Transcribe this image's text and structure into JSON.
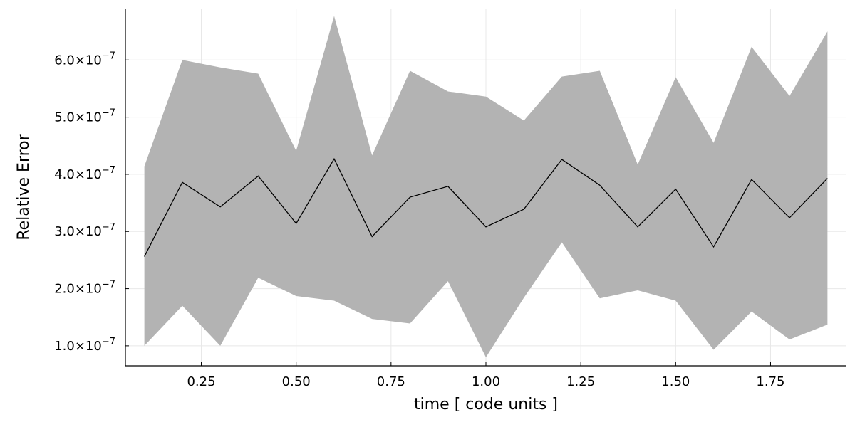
{
  "chart_data": {
    "type": "line",
    "title": "",
    "xlabel": "time [ code units ]",
    "ylabel": "Relative Error",
    "xlim": [
      0.05,
      1.95
    ],
    "ylim": [
      6.5e-08,
      6.9e-07
    ],
    "grid": true,
    "legend": "none",
    "x_ticks": [
      0.25,
      0.5,
      0.75,
      1.0,
      1.25,
      1.5,
      1.75
    ],
    "x_tick_labels": [
      "0.25",
      "0.50",
      "0.75",
      "1.00",
      "1.25",
      "1.50",
      "1.75"
    ],
    "y_ticks": [
      1e-07,
      2e-07,
      3e-07,
      4e-07,
      5e-07,
      6e-07
    ],
    "y_tick_mantissas": [
      "1.0",
      "2.0",
      "3.0",
      "4.0",
      "5.0",
      "6.0"
    ],
    "y_tick_base": "×10",
    "y_tick_exponent": "−7",
    "x": [
      0.1,
      0.2,
      0.3,
      0.4,
      0.5,
      0.6,
      0.7,
      0.8,
      0.9,
      1.0,
      1.1,
      1.2,
      1.3,
      1.4,
      1.5,
      1.6,
      1.7,
      1.8,
      1.9
    ],
    "series": [
      {
        "values": [
          2.56e-07,
          3.86e-07,
          3.43e-07,
          3.97e-07,
          3.14e-07,
          4.27e-07,
          2.91e-07,
          3.6e-07,
          3.79e-07,
          3.08e-07,
          3.39e-07,
          4.26e-07,
          3.81e-07,
          3.08e-07,
          3.74e-07,
          2.73e-07,
          3.91e-07,
          3.24e-07,
          3.93e-07
        ],
        "band_lower": [
          1e-07,
          1.7e-07,
          1e-07,
          2.19e-07,
          1.87e-07,
          1.79e-07,
          1.47e-07,
          1.39e-07,
          2.13e-07,
          8e-08,
          1.84e-07,
          2.81e-07,
          1.83e-07,
          1.97e-07,
          1.79e-07,
          9.3e-08,
          1.6e-07,
          1.11e-07,
          1.37e-07
        ],
        "band_upper": [
          4.14e-07,
          6e-07,
          5.87e-07,
          5.76e-07,
          4.41e-07,
          6.77e-07,
          4.33e-07,
          5.81e-07,
          5.45e-07,
          5.36e-07,
          4.94e-07,
          5.71e-07,
          5.81e-07,
          4.17e-07,
          5.7e-07,
          4.55e-07,
          6.23e-07,
          5.37e-07,
          6.5e-07
        ]
      }
    ],
    "colors": {
      "line": "#000000",
      "band": "#b3b3b3",
      "grid": "#e8e8e8",
      "axis": "#000000"
    }
  }
}
